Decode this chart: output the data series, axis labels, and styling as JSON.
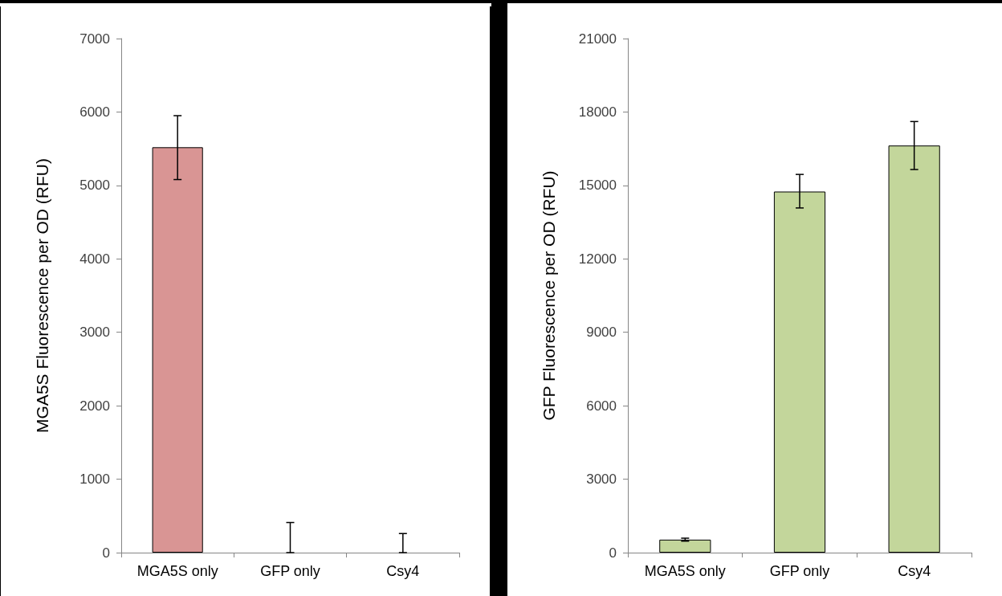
{
  "chart_data": [
    {
      "type": "bar",
      "ylabel": "MGA5S Fluorescence per OD (RFU)",
      "categories": [
        "MGA5S only",
        "GFP only",
        "Csy4"
      ],
      "values": [
        5520,
        0,
        0
      ],
      "errors": [
        [
          5080,
          5950
        ],
        [
          0,
          410
        ],
        [
          0,
          260
        ]
      ],
      "color": "#d99594",
      "ylim": [
        0,
        7000
      ],
      "yticks": [
        0,
        1000,
        2000,
        3000,
        4000,
        5000,
        6000,
        7000
      ],
      "grid": false
    },
    {
      "type": "bar",
      "ylabel": "GFP Fluorescence per OD (RFU)",
      "categories": [
        "MGA5S only",
        "GFP only",
        "Csy4"
      ],
      "values": [
        530,
        14750,
        16630
      ],
      "errors": [
        60,
        [
          14080,
          15450
        ],
        980
      ],
      "color": "#c3d69b",
      "ylim": [
        0,
        21000
      ],
      "yticks": [
        0,
        3000,
        6000,
        9000,
        12000,
        15000,
        18000,
        21000
      ],
      "grid": false
    }
  ]
}
